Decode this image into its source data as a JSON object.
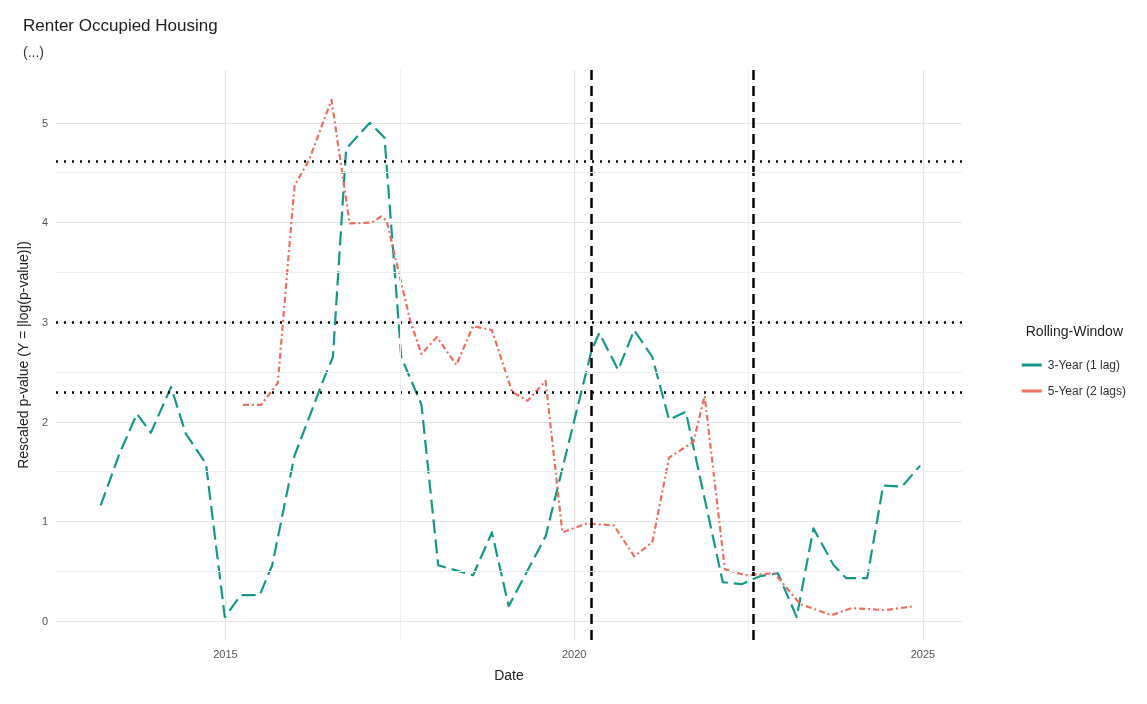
{
  "chart_data": {
    "type": "line",
    "title": "Renter Occupied Housing",
    "subtitle": "(...)",
    "xlabel": "Date",
    "ylabel": "Rescaled p-value (Y = |log(p-value)|)",
    "legend_title": "Rolling-Window",
    "legend": "right",
    "grid": true,
    "marker": "none",
    "xlim": [
      2012.57,
      2025.56
    ],
    "xticks": [
      2015,
      2020,
      2025
    ],
    "ylim": [
      -0.19,
      5.53
    ],
    "yticks": [
      0,
      1,
      2,
      3,
      4,
      5
    ],
    "series": [
      {
        "name": "3-Year (1 lag)",
        "color": "#16978a",
        "line_style": "dashed",
        "x": [
          2013.21,
          2013.48,
          2013.73,
          2013.93,
          2014.22,
          2014.43,
          2014.72,
          2014.99,
          2015.22,
          2015.49,
          2015.67,
          2015.99,
          2016.41,
          2016.54,
          2016.73,
          2017.07,
          2017.28,
          2017.52,
          2017.81,
          2018.05,
          2018.55,
          2018.82,
          2019.06,
          2019.59,
          2020.25,
          2020.36,
          2020.63,
          2020.86,
          2021.12,
          2021.36,
          2021.6,
          2022.13,
          2022.4,
          2022.66,
          2022.92,
          2023.19,
          2023.43,
          2023.72,
          2023.9,
          2024.2,
          2024.43,
          2024.7,
          2024.96
        ],
        "values": [
          1.16,
          1.68,
          2.08,
          1.89,
          2.35,
          1.88,
          1.58,
          0.04,
          0.26,
          0.26,
          0.56,
          1.66,
          2.43,
          2.65,
          4.74,
          5.0,
          4.85,
          2.65,
          2.17,
          0.56,
          0.46,
          0.89,
          0.15,
          0.85,
          2.72,
          2.89,
          2.52,
          2.92,
          2.65,
          2.02,
          2.1,
          0.39,
          0.37,
          0.45,
          0.48,
          0.04,
          0.93,
          0.56,
          0.43,
          0.43,
          1.36,
          1.35,
          1.56
        ]
      },
      {
        "name": "5-Year (2 lags)",
        "color": "#ef6f5e",
        "line_style": "dashed",
        "x": [
          2015.25,
          2015.51,
          2015.75,
          2015.99,
          2016.2,
          2016.52,
          2016.78,
          2017.1,
          2017.23,
          2017.31,
          2017.65,
          2017.81,
          2018.03,
          2018.31,
          2018.55,
          2018.82,
          2019.11,
          2019.33,
          2019.59,
          2019.83,
          2020.18,
          2020.57,
          2020.86,
          2021.12,
          2021.36,
          2021.71,
          2021.87,
          2022.16,
          2022.45,
          2022.87,
          2023.24,
          2023.69,
          2023.98,
          2024.46,
          2024.88
        ],
        "values": [
          2.17,
          2.17,
          2.39,
          4.37,
          4.63,
          5.23,
          3.99,
          4.0,
          4.06,
          4.02,
          3.01,
          2.68,
          2.85,
          2.57,
          2.96,
          2.92,
          2.3,
          2.21,
          2.41,
          0.89,
          0.98,
          0.96,
          0.65,
          0.79,
          1.64,
          1.8,
          2.26,
          0.52,
          0.46,
          0.48,
          0.17,
          0.06,
          0.13,
          0.11,
          0.15
        ]
      }
    ],
    "ref_lines": [
      {
        "axis": "y",
        "value": 4.61,
        "color": "#000000",
        "line_style": "dotted"
      },
      {
        "axis": "y",
        "value": 3.0,
        "color": "#000000",
        "line_style": "dotted"
      },
      {
        "axis": "y",
        "value": 2.3,
        "color": "#000000",
        "line_style": "dotted"
      },
      {
        "axis": "x",
        "value": 2020.25,
        "color": "#000000",
        "line_style": "dashed"
      },
      {
        "axis": "x",
        "value": 2022.57,
        "color": "#000000",
        "line_style": "dashed"
      }
    ]
  }
}
